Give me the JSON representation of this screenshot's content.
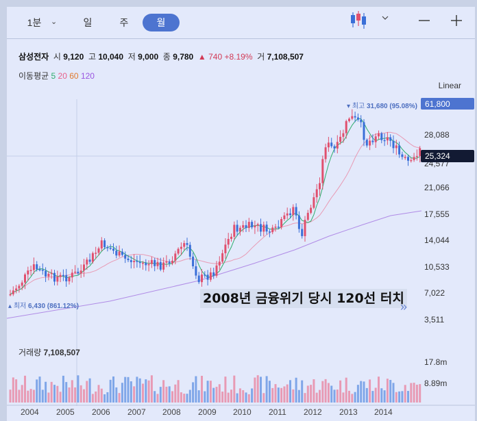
{
  "toolbar": {
    "interval": "1분",
    "tabs": [
      "일",
      "주",
      "월"
    ],
    "active_tab": "월"
  },
  "stock": {
    "name": "삼성전자",
    "open_label": "시",
    "open": "9,120",
    "high_label": "고",
    "high": "10,040",
    "low_label": "저",
    "low": "9,000",
    "close_label": "종",
    "close": "9,780",
    "change": "▲ 740",
    "change_pct": "+8.19%",
    "volume_label": "거",
    "volume": "7,108,507"
  },
  "ma": {
    "label": "이동평균",
    "periods": [
      "5",
      "20",
      "60",
      "120"
    ],
    "colors": [
      "#2fae6e",
      "#e85f8a",
      "#e07a2f",
      "#9a55e0"
    ]
  },
  "scale_mode": "Linear",
  "price_axis": [
    "28,088",
    "24,577",
    "21,066",
    "17,555",
    "14,044",
    "10,533",
    "7,022",
    "3,511"
  ],
  "price_top_badge": "61,800",
  "price_current_badge": "25,324",
  "high_marker": {
    "label": "최고",
    "value": "31,680 (95.08%)"
  },
  "low_marker": {
    "label": "최저",
    "value": "6,430 (861.12%)"
  },
  "annotation": "2008년 금융위기 당시 120선 터치",
  "volume": {
    "label": "거래량",
    "value": "7,108,507",
    "axis": [
      "17.8m",
      "8.89m"
    ]
  },
  "x_axis": [
    "2004",
    "2005",
    "2006",
    "2007",
    "2008",
    "2009",
    "2010",
    "2011",
    "2012",
    "2013",
    "2014"
  ],
  "colors": {
    "up": "#e0506e",
    "down": "#3a6fd8",
    "accent": "#4d74d0",
    "bg": "#e3e9fb"
  }
}
